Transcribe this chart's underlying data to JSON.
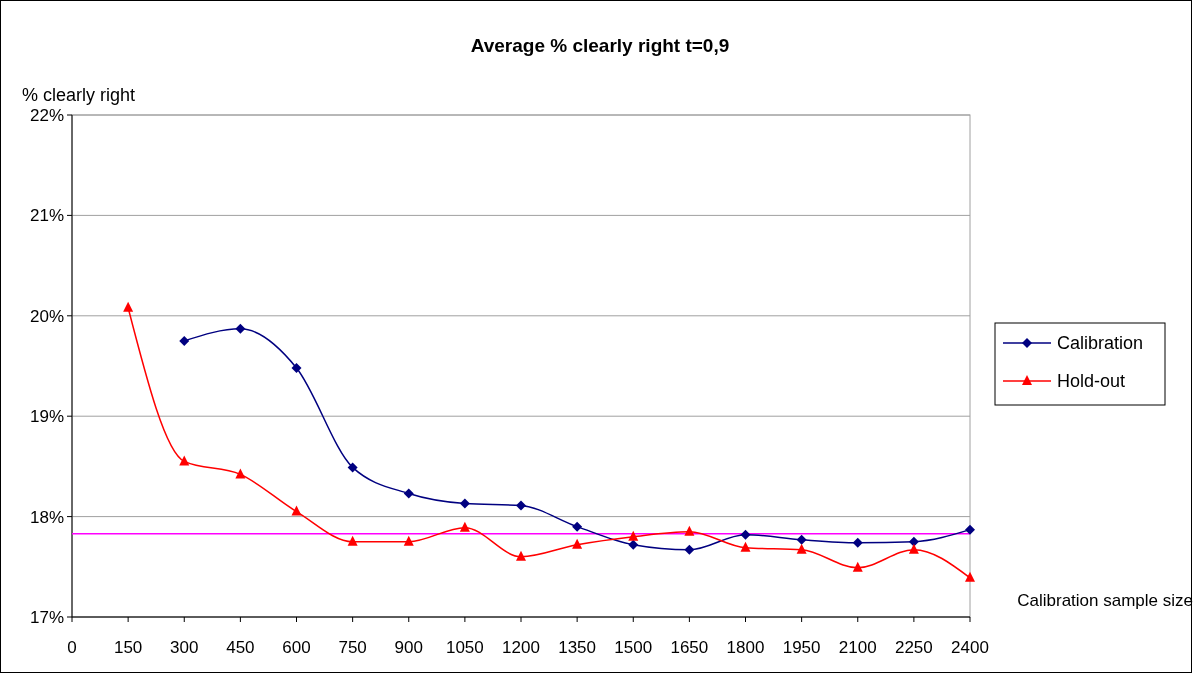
{
  "chart_data": {
    "type": "line",
    "title": "Average % clearly right t=0,9",
    "xlabel": "Calibration sample size",
    "ylabel": "% clearly right",
    "x": [
      150,
      300,
      450,
      600,
      750,
      900,
      1050,
      1200,
      1350,
      1500,
      1650,
      1800,
      1950,
      2100,
      2250,
      2400
    ],
    "series": [
      {
        "name": "Calibration",
        "color": "#000080",
        "marker": "diamond",
        "values": [
          null,
          19.75,
          19.87,
          19.48,
          18.49,
          18.23,
          18.13,
          18.11,
          17.9,
          17.72,
          17.67,
          17.82,
          17.77,
          17.74,
          17.75,
          17.87
        ]
      },
      {
        "name": "Hold-out",
        "color": "#ff0000",
        "marker": "triangle",
        "values": [
          20.08,
          18.55,
          18.42,
          18.05,
          17.75,
          17.75,
          17.89,
          17.6,
          17.72,
          17.8,
          17.85,
          17.69,
          17.67,
          17.49,
          17.67,
          17.39
        ]
      }
    ],
    "xlim": [
      0,
      2400
    ],
    "xticks": [
      0,
      150,
      300,
      450,
      600,
      750,
      900,
      1050,
      1200,
      1350,
      1500,
      1650,
      1800,
      1950,
      2100,
      2250,
      2400
    ],
    "ylim": [
      17,
      22
    ],
    "yticks": [
      {
        "value": 17,
        "label": "17%"
      },
      {
        "value": 18,
        "label": "18%"
      },
      {
        "value": 19,
        "label": "19%"
      },
      {
        "value": 20,
        "label": "20%"
      },
      {
        "value": 21,
        "label": "21%"
      },
      {
        "value": 22,
        "label": "22%"
      }
    ],
    "ref_lines": [
      {
        "axis": "y",
        "value": 17.83,
        "color": "#ff00ff"
      }
    ],
    "grid": "y",
    "legend": "right"
  }
}
